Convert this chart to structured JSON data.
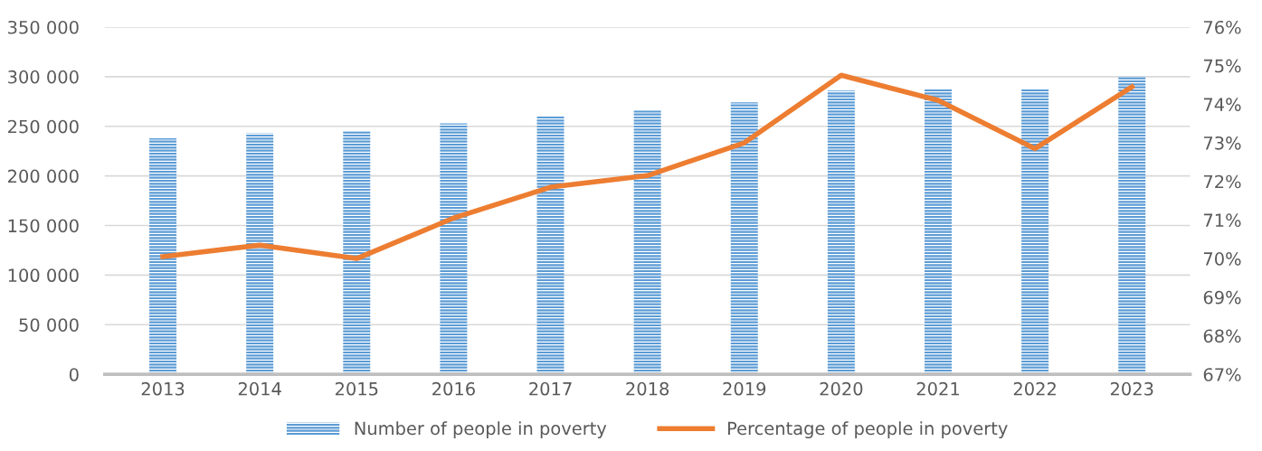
{
  "chart_data": {
    "type": "bar",
    "categories": [
      "2013",
      "2014",
      "2015",
      "2016",
      "2017",
      "2018",
      "2019",
      "2020",
      "2021",
      "2022",
      "2023"
    ],
    "series": [
      {
        "name": "Number of people in poverty",
        "color": "#5b9bd5",
        "values": [
          238000,
          243000,
          245000,
          253000,
          260000,
          266000,
          274000,
          286000,
          288000,
          288000,
          300000
        ]
      },
      {
        "name": "Percentage of people in poverty",
        "type": "line",
        "axis": "y2",
        "color": "#ed7d31",
        "values": [
          70.05,
          70.35,
          70.0,
          71.05,
          71.85,
          72.15,
          73.0,
          74.75,
          74.1,
          72.85,
          74.45
        ]
      }
    ],
    "ylim": [
      0,
      350000
    ],
    "yticks": [
      0,
      {
        "value": 50000,
        "label": "50 000"
      },
      {
        "value": 100000,
        "label": "100 000"
      },
      {
        "value": 150000,
        "label": "150 000"
      },
      {
        "value": 200000,
        "label": "200 000"
      },
      {
        "value": 250000,
        "label": "250 000"
      },
      {
        "value": 300000,
        "label": "300 000"
      },
      {
        "value": 350000,
        "label": "350 000"
      }
    ],
    "y2lim": [
      67,
      76
    ],
    "y2ticks": [
      {
        "value": 67,
        "label": "67%"
      },
      {
        "value": 68,
        "label": "68%"
      },
      {
        "value": 69,
        "label": "69%"
      },
      {
        "value": 70,
        "label": "70%"
      },
      {
        "value": 71,
        "label": "71%"
      },
      {
        "value": 72,
        "label": "72%"
      },
      {
        "value": 73,
        "label": "73%"
      },
      {
        "value": 74,
        "label": "74%"
      },
      {
        "value": 75,
        "label": "75%"
      },
      {
        "value": 76,
        "label": "76%"
      }
    ],
    "grid": "y",
    "legend": "bottom",
    "marker": "none",
    "line_style": "solid"
  }
}
